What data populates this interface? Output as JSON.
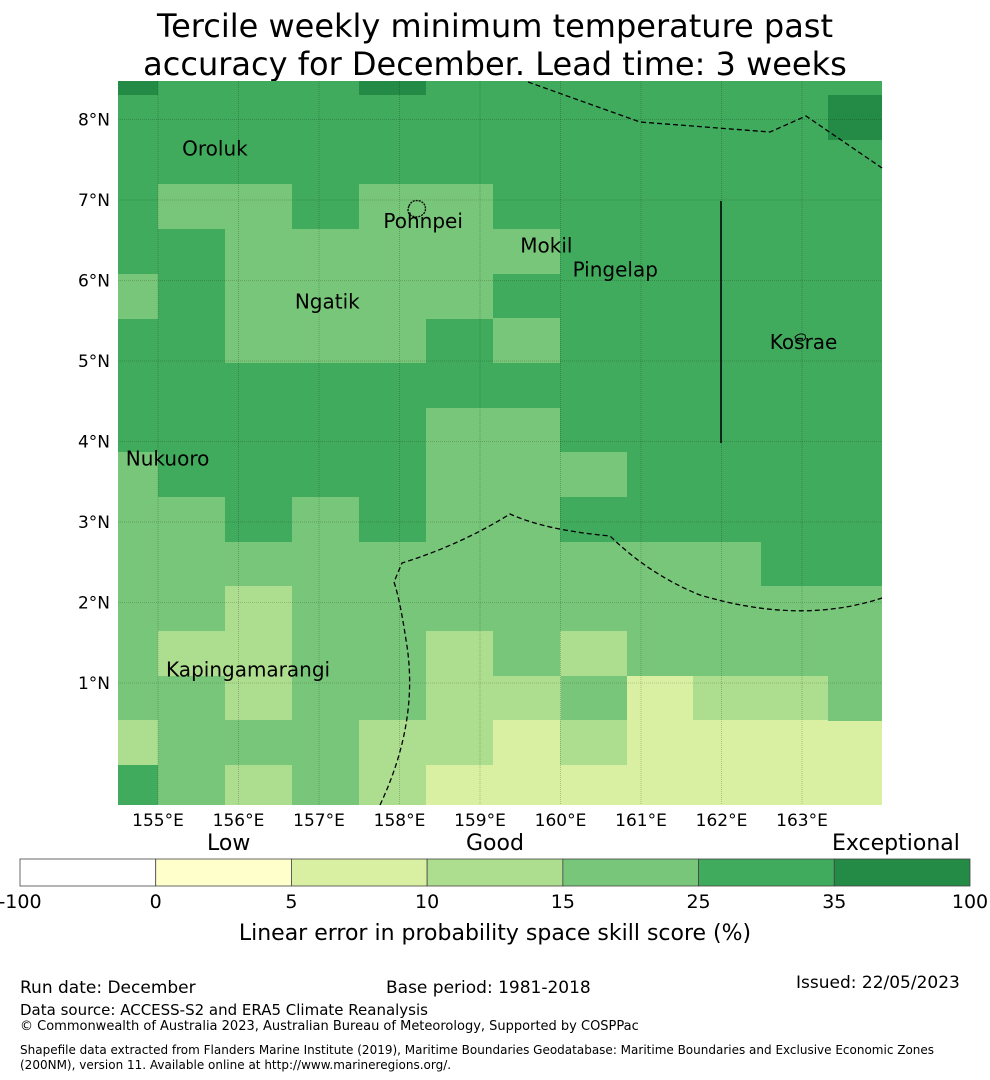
{
  "title_line1": "Tercile weekly minimum temperature past",
  "title_line2": "accuracy for December. Lead time: 3 weeks",
  "map": {
    "lon_ticks": [
      "155°E",
      "156°E",
      "157°E",
      "158°E",
      "159°E",
      "160°E",
      "161°E",
      "162°E",
      "163°E"
    ],
    "lat_ticks": [
      "8°N",
      "7°N",
      "6°N",
      "5°N",
      "4°N",
      "3°N",
      "2°N",
      "1°N"
    ],
    "places": [
      {
        "name": "Oroluk",
        "lon": 155.3,
        "lat": 7.55
      },
      {
        "name": "Pohnpei",
        "lon": 157.8,
        "lat": 6.65
      },
      {
        "name": "Mokil",
        "lon": 159.5,
        "lat": 6.35
      },
      {
        "name": "Pingelap",
        "lon": 160.15,
        "lat": 6.05
      },
      {
        "name": "Ngatik",
        "lon": 156.7,
        "lat": 5.65
      },
      {
        "name": "Kosrae",
        "lon": 162.6,
        "lat": 5.15
      },
      {
        "name": "Nukuoro",
        "lon": 154.6,
        "lat": 3.7
      },
      {
        "name": "Kapingamarangi",
        "lon": 155.1,
        "lat": 1.08
      }
    ],
    "grid_colors": {
      "25-35": "#41ab5d",
      "35-100": "#238b45",
      "15-25": "#78c679",
      "10-15": "#addd8e",
      "5-10": "#d9f0a3",
      "0-5": "#ffffcc"
    }
  },
  "colorbar": {
    "ticks": [
      "-100",
      "0",
      "5",
      "10",
      "15",
      "25",
      "35",
      "100"
    ],
    "colors": [
      "#ffffff",
      "#ffffcc",
      "#d9f0a3",
      "#addd8e",
      "#78c679",
      "#41ab5d",
      "#238b45"
    ],
    "categories": [
      "Low",
      "Good",
      "Exceptional"
    ],
    "label": "Linear error in probability space skill score (%)"
  },
  "footer": {
    "run_date": "Run date: December",
    "base_period": "Base period: 1981-2018",
    "issued": "Issued: 22/05/2023",
    "data_source": "Data source: ACCESS-S2 and ERA5 Climate Reanalysis",
    "copyright": "© Commonwealth of Australia 2023, Australian Bureau of Meteorology, Supported by COSPPac",
    "shapefile": "Shapefile data extracted from Flanders Marine Institute (2019), Maritime Boundaries Geodatabase: Maritime Boundaries and Exclusive Economic Zones (200NM), version 11. Available online at http://www.marineregions.org/."
  }
}
